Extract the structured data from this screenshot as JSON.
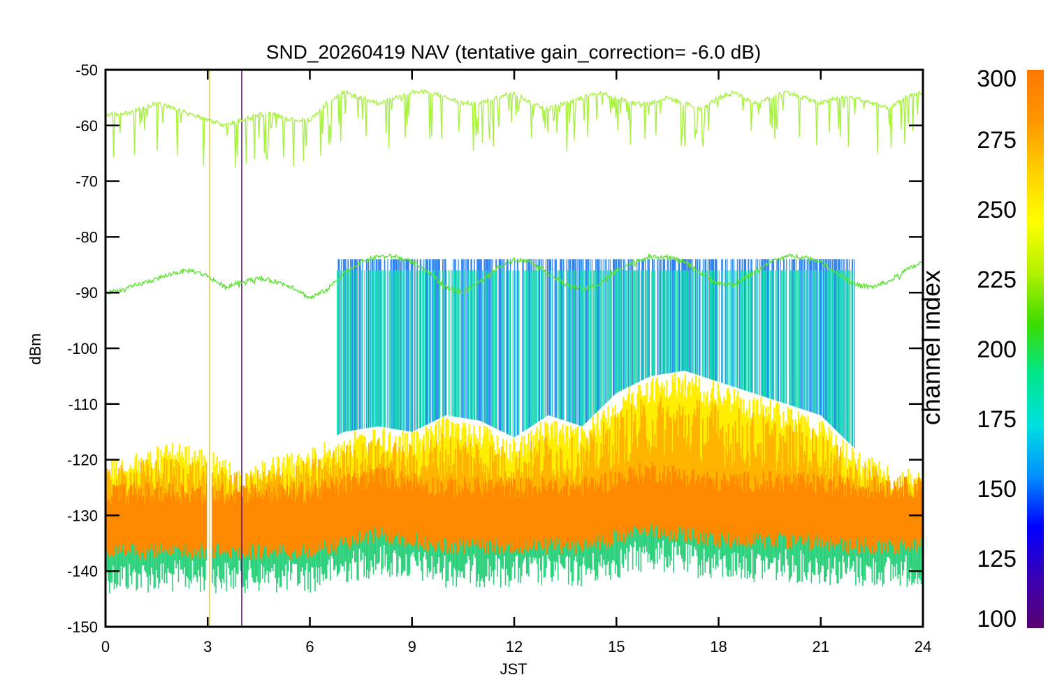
{
  "chart_data": {
    "type": "line",
    "title": "SND_20260419 NAV (tentative gain_correction= -6.0 dB)",
    "xlabel": "JST",
    "ylabel": "dBm",
    "xlim": [
      0,
      24
    ],
    "ylim": [
      -150,
      -50
    ],
    "x_ticks": [
      "0",
      "3",
      "6",
      "9",
      "12",
      "15",
      "18",
      "21",
      "24"
    ],
    "y_ticks": [
      "-50",
      "-60",
      "-70",
      "-80",
      "-90",
      "-100",
      "-110",
      "-120",
      "-130",
      "-140",
      "-150"
    ],
    "colorbar": {
      "label": "channel index",
      "range": [
        100,
        300
      ],
      "ticks": [
        "300",
        "275",
        "250",
        "225",
        "200",
        "175",
        "150",
        "125",
        "100"
      ],
      "colormap": [
        "#5a0070",
        "#3a00b4",
        "#0000ff",
        "#0090ff",
        "#00e0e0",
        "#00e68c",
        "#3cdc00",
        "#b4f000",
        "#ffff00",
        "#ffd000",
        "#ff9600",
        "#ff7800"
      ]
    },
    "series": [
      {
        "name": "upper-trace",
        "color": "#a6f23c",
        "x": [
          0,
          0.5,
          1.0,
          1.5,
          2.0,
          2.5,
          3.0,
          3.5,
          4.0,
          4.5,
          5.0,
          5.5,
          6.0,
          6.5,
          7.0,
          7.5,
          8.0,
          8.5,
          9.0,
          9.5,
          10.0,
          10.5,
          11.0,
          11.5,
          12.0,
          12.5,
          13.0,
          13.5,
          14.0,
          14.5,
          15.0,
          15.5,
          16.0,
          16.5,
          17.0,
          17.5,
          18.0,
          18.5,
          19.0,
          19.5,
          20.0,
          20.5,
          21.0,
          21.5,
          22.0,
          22.5,
          23.0,
          23.5,
          24.0
        ],
        "values": [
          -58,
          -58,
          -57,
          -56,
          -57,
          -58,
          -59,
          -60,
          -59,
          -58,
          -58,
          -59,
          -59,
          -56,
          -54,
          -55,
          -56,
          -55,
          -54,
          -54,
          -55,
          -56,
          -56,
          -55,
          -54,
          -56,
          -57,
          -56,
          -55,
          -54,
          -55,
          -56,
          -56,
          -55,
          -56,
          -57,
          -55,
          -54,
          -56,
          -55,
          -54,
          -55,
          -56,
          -55,
          -55,
          -56,
          -57,
          -55,
          -54
        ]
      },
      {
        "name": "middle-trace",
        "color": "#59e32f",
        "x": [
          0,
          0.5,
          1.0,
          1.5,
          2.0,
          2.5,
          3.0,
          3.5,
          4.0,
          4.5,
          5.0,
          5.5,
          6.0,
          6.5,
          7.0,
          7.5,
          8.0,
          8.5,
          9.0,
          9.5,
          10.0,
          10.5,
          11.0,
          11.5,
          12.0,
          12.5,
          13.0,
          13.5,
          14.0,
          14.5,
          15.0,
          15.5,
          16.0,
          16.5,
          17.0,
          17.5,
          18.0,
          18.5,
          19.0,
          19.5,
          20.0,
          20.5,
          21.0,
          21.5,
          22.0,
          22.5,
          23.0,
          23.5,
          24.0
        ],
        "values": [
          -90,
          -89.5,
          -88.5,
          -87.5,
          -86.5,
          -86,
          -87,
          -89,
          -88,
          -87.5,
          -88,
          -89,
          -91,
          -89.5,
          -86.5,
          -84.5,
          -83.5,
          -83.5,
          -84.5,
          -86.5,
          -89,
          -90,
          -88,
          -85.5,
          -84,
          -84.5,
          -86.5,
          -88.5,
          -89.5,
          -88.5,
          -86,
          -84.5,
          -83.5,
          -83.5,
          -84.5,
          -86.5,
          -88.5,
          -88.5,
          -86.5,
          -84.5,
          -83.5,
          -83.5,
          -84.5,
          -86.5,
          -88.5,
          -89,
          -88,
          -86,
          -84.5
        ]
      },
      {
        "name": "noise-floor-envelope-top",
        "color": "#ffee00",
        "x": [
          0,
          1,
          2,
          3,
          4,
          5,
          6,
          7,
          8,
          9,
          10,
          11,
          12,
          13,
          14,
          15,
          16,
          17,
          18,
          19,
          20,
          21,
          22,
          23,
          24
        ],
        "values": [
          -120,
          -118,
          -117,
          -118,
          -121,
          -119,
          -118,
          -115,
          -114,
          -115,
          -112,
          -113,
          -116,
          -112,
          -114,
          -108,
          -105,
          -104,
          -106,
          -108,
          -110,
          -112,
          -118,
          -121,
          -122
        ]
      },
      {
        "name": "noise-floor-median",
        "color": "#ff8a00",
        "x": [
          0,
          2,
          4,
          6,
          8,
          9,
          10,
          12,
          14,
          16,
          17,
          18,
          20,
          22,
          24
        ],
        "values": [
          -131,
          -131,
          -131,
          -131,
          -128,
          -129,
          -130,
          -130,
          -130,
          -127,
          -128,
          -129,
          -129,
          -130,
          -130
        ]
      }
    ],
    "markers": [
      {
        "name": "gap-line",
        "x": 3.05,
        "color": "#ffd000"
      },
      {
        "name": "spike-line",
        "x": 4.0,
        "color": "#5a0070"
      }
    ]
  }
}
